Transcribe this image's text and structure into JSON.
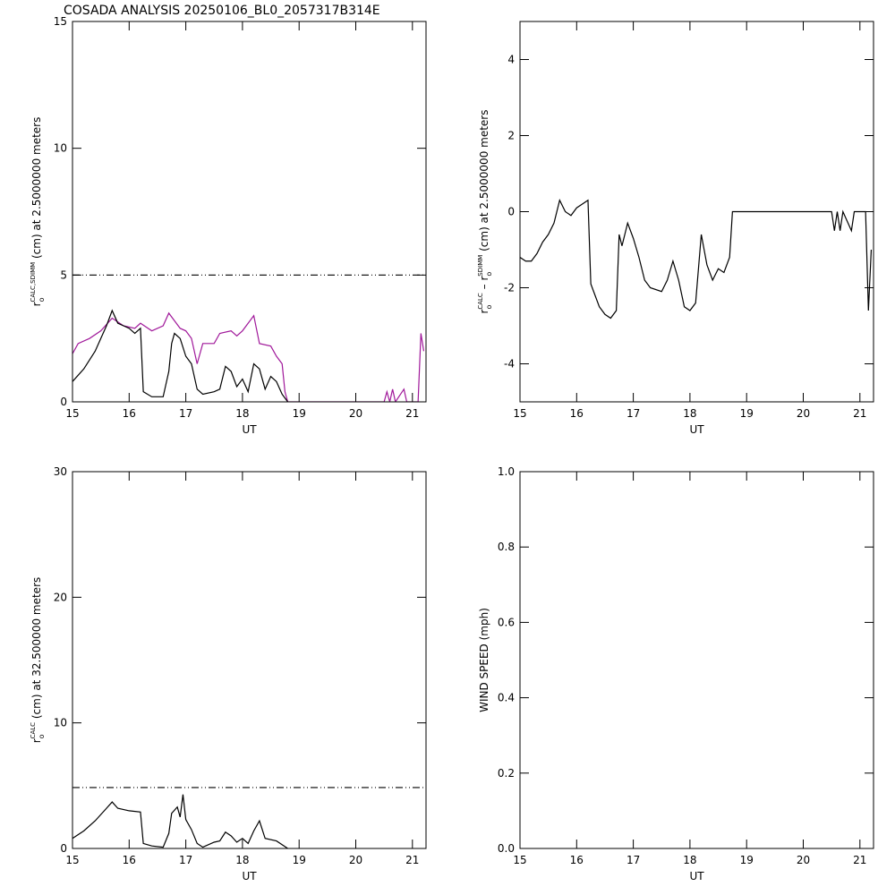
{
  "chart_data": [
    {
      "type": "line",
      "title": "COSADA ANALYSIS 20250106_BL0_2057317B314E",
      "xlabel": "UT",
      "ylabel_parts": [
        {
          "text": "r",
          "style": "base"
        },
        {
          "text": "o",
          "style": "sub"
        },
        {
          "text": "CALC,SDIMM",
          "style": "sup"
        },
        {
          "text": " (cm)  at  2.5000000 meters",
          "style": "base"
        }
      ],
      "xlim": [
        15,
        21.24
      ],
      "xticks": [
        15,
        16,
        17,
        18,
        19,
        20,
        21
      ],
      "ylim": [
        0,
        15
      ],
      "yticks": [
        0,
        5,
        10,
        15
      ],
      "series": [
        {
          "color": "#000000",
          "dash": "dashdot",
          "x": [
            15,
            21.24
          ],
          "values": [
            5,
            5
          ]
        },
        {
          "color": "#a0189a",
          "dash": "solid",
          "x": [
            15.0,
            15.1,
            15.3,
            15.5,
            15.7,
            15.9,
            16.1,
            16.2,
            16.4,
            16.6,
            16.7,
            16.8,
            16.9,
            17.0,
            17.1,
            17.2,
            17.3,
            17.5,
            17.6,
            17.8,
            17.9,
            18.0,
            18.2,
            18.3,
            18.5,
            18.6,
            18.7,
            18.75,
            18.8,
            20.5,
            20.55,
            20.6,
            20.65,
            20.7,
            20.85,
            20.9,
            21.1,
            21.15,
            21.2
          ],
          "values": [
            1.9,
            2.3,
            2.5,
            2.8,
            3.3,
            3.0,
            2.9,
            3.1,
            2.8,
            3.0,
            3.5,
            3.2,
            2.9,
            2.8,
            2.5,
            1.5,
            2.3,
            2.3,
            2.7,
            2.8,
            2.6,
            2.8,
            3.4,
            2.3,
            2.2,
            1.8,
            1.5,
            0.4,
            0,
            0,
            0.4,
            0,
            0.5,
            0,
            0.5,
            0,
            0,
            2.7,
            2.0
          ]
        },
        {
          "color": "#000000",
          "dash": "solid",
          "x": [
            15.0,
            15.2,
            15.4,
            15.5,
            15.6,
            15.7,
            15.8,
            15.9,
            16.0,
            16.1,
            16.2,
            16.25,
            16.4,
            16.6,
            16.7,
            16.75,
            16.8,
            16.9,
            17.0,
            17.1,
            17.2,
            17.3,
            17.5,
            17.6,
            17.7,
            17.8,
            17.9,
            18.0,
            18.1,
            18.2,
            18.3,
            18.4,
            18.5,
            18.6,
            18.7,
            18.8
          ],
          "values": [
            0.8,
            1.3,
            2.0,
            2.5,
            3.0,
            3.6,
            3.1,
            3.0,
            2.9,
            2.7,
            2.9,
            0.4,
            0.2,
            0.2,
            1.2,
            2.3,
            2.7,
            2.5,
            1.8,
            1.5,
            0.5,
            0.3,
            0.4,
            0.5,
            1.4,
            1.2,
            0.6,
            0.9,
            0.4,
            1.5,
            1.3,
            0.5,
            1.0,
            0.8,
            0.3,
            0
          ]
        }
      ]
    },
    {
      "type": "line",
      "xlabel": "UT",
      "ylabel_parts": [
        {
          "text": "r",
          "style": "base"
        },
        {
          "text": "o",
          "style": "sub"
        },
        {
          "text": "CALC",
          "style": "sup"
        },
        {
          "text": "  –  r",
          "style": "base"
        },
        {
          "text": "o",
          "style": "sub"
        },
        {
          "text": "SDIMM",
          "style": "sup"
        },
        {
          "text": " (cm) at 2.5000000 meters",
          "style": "base"
        }
      ],
      "xlim": [
        15,
        21.24
      ],
      "xticks": [
        15,
        16,
        17,
        18,
        19,
        20,
        21
      ],
      "ylim": [
        -5,
        5
      ],
      "yticks": [
        -4,
        -2,
        0,
        2,
        4
      ],
      "series": [
        {
          "color": "#000000",
          "dash": "solid",
          "x": [
            15.0,
            15.1,
            15.2,
            15.3,
            15.4,
            15.5,
            15.6,
            15.7,
            15.8,
            15.9,
            16.0,
            16.1,
            16.2,
            16.25,
            16.3,
            16.4,
            16.5,
            16.6,
            16.7,
            16.75,
            16.8,
            16.9,
            17.0,
            17.1,
            17.2,
            17.3,
            17.5,
            17.6,
            17.7,
            17.8,
            17.9,
            18.0,
            18.1,
            18.2,
            18.3,
            18.4,
            18.5,
            18.6,
            18.7,
            18.75,
            20.5,
            20.55,
            20.6,
            20.65,
            20.7,
            20.85,
            20.9,
            21.1,
            21.15,
            21.2
          ],
          "values": [
            -1.2,
            -1.3,
            -1.3,
            -1.1,
            -0.8,
            -0.6,
            -0.3,
            0.3,
            0.0,
            -0.1,
            0.1,
            0.2,
            0.3,
            -1.9,
            -2.1,
            -2.5,
            -2.7,
            -2.8,
            -2.6,
            -0.6,
            -0.9,
            -0.3,
            -0.7,
            -1.2,
            -1.8,
            -2.0,
            -2.1,
            -1.8,
            -1.3,
            -1.8,
            -2.5,
            -2.6,
            -2.4,
            -0.6,
            -1.4,
            -1.8,
            -1.5,
            -1.6,
            -1.2,
            0,
            0,
            -0.5,
            0,
            -0.5,
            0,
            -0.5,
            0,
            0,
            -2.6,
            -1.0
          ]
        }
      ]
    },
    {
      "type": "line",
      "xlabel": "UT",
      "ylabel_parts": [
        {
          "text": "r",
          "style": "base"
        },
        {
          "text": "o",
          "style": "sub"
        },
        {
          "text": "CALC",
          "style": "sup"
        },
        {
          "text": " (cm) at 32.500000 meters",
          "style": "base"
        }
      ],
      "xlim": [
        15,
        21.24
      ],
      "xticks": [
        15,
        16,
        17,
        18,
        19,
        20,
        21
      ],
      "ylim": [
        0,
        30
      ],
      "yticks": [
        0,
        10,
        20,
        30
      ],
      "series": [
        {
          "color": "#000000",
          "dash": "dashdot",
          "x": [
            15,
            21.24
          ],
          "values": [
            4.85,
            4.85
          ]
        },
        {
          "color": "#000000",
          "dash": "solid",
          "x": [
            15.0,
            15.2,
            15.4,
            15.6,
            15.7,
            15.8,
            16.0,
            16.2,
            16.25,
            16.4,
            16.6,
            16.7,
            16.75,
            16.85,
            16.9,
            16.95,
            17.0,
            17.1,
            17.2,
            17.3,
            17.5,
            17.6,
            17.7,
            17.8,
            17.9,
            18.0,
            18.1,
            18.2,
            18.3,
            18.4,
            18.6,
            18.8
          ],
          "values": [
            0.8,
            1.4,
            2.2,
            3.2,
            3.7,
            3.2,
            3.0,
            2.9,
            0.4,
            0.2,
            0.1,
            1.2,
            2.8,
            3.3,
            2.5,
            4.3,
            2.3,
            1.5,
            0.4,
            0.1,
            0.5,
            0.6,
            1.3,
            1.0,
            0.5,
            0.8,
            0.4,
            1.4,
            2.2,
            0.8,
            0.6,
            0.0
          ]
        }
      ]
    },
    {
      "type": "line",
      "xlabel": "UT",
      "ylabel_parts": [
        {
          "text": "WIND SPEED (mph)",
          "style": "base"
        }
      ],
      "xlim": [
        15,
        21.24
      ],
      "xticks": [
        15,
        16,
        17,
        18,
        19,
        20,
        21
      ],
      "ylim": [
        0,
        1
      ],
      "yticks": [
        {
          "value": 0,
          "label": "0.0"
        },
        0.2,
        0.4,
        0.6,
        0.8,
        {
          "value": 1,
          "label": "1.0"
        }
      ],
      "series": []
    }
  ]
}
